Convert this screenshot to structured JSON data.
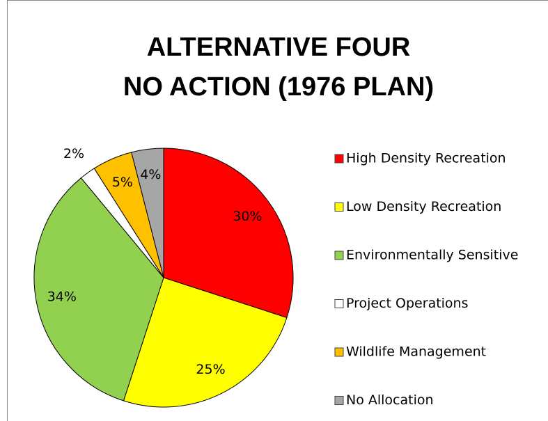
{
  "chart_data": {
    "type": "pie",
    "title": [
      "ALTERNATIVE FOUR",
      "NO ACTION (1976 PLAN)"
    ],
    "categories": [
      "High Density Recreation",
      "Low Density Recreation",
      "Environmentally Sensitive",
      "Project Operations",
      "Wildlife Management",
      "No Allocation"
    ],
    "values": [
      30,
      25,
      34,
      2,
      5,
      4
    ],
    "value_labels": [
      "30%",
      "25%",
      "34%",
      "2%",
      "5%",
      "4%"
    ],
    "colors": [
      "#ff0000",
      "#ffff00",
      "#92d050",
      "#ffffff",
      "#ffc000",
      "#a6a6a6"
    ],
    "legend": "right"
  }
}
